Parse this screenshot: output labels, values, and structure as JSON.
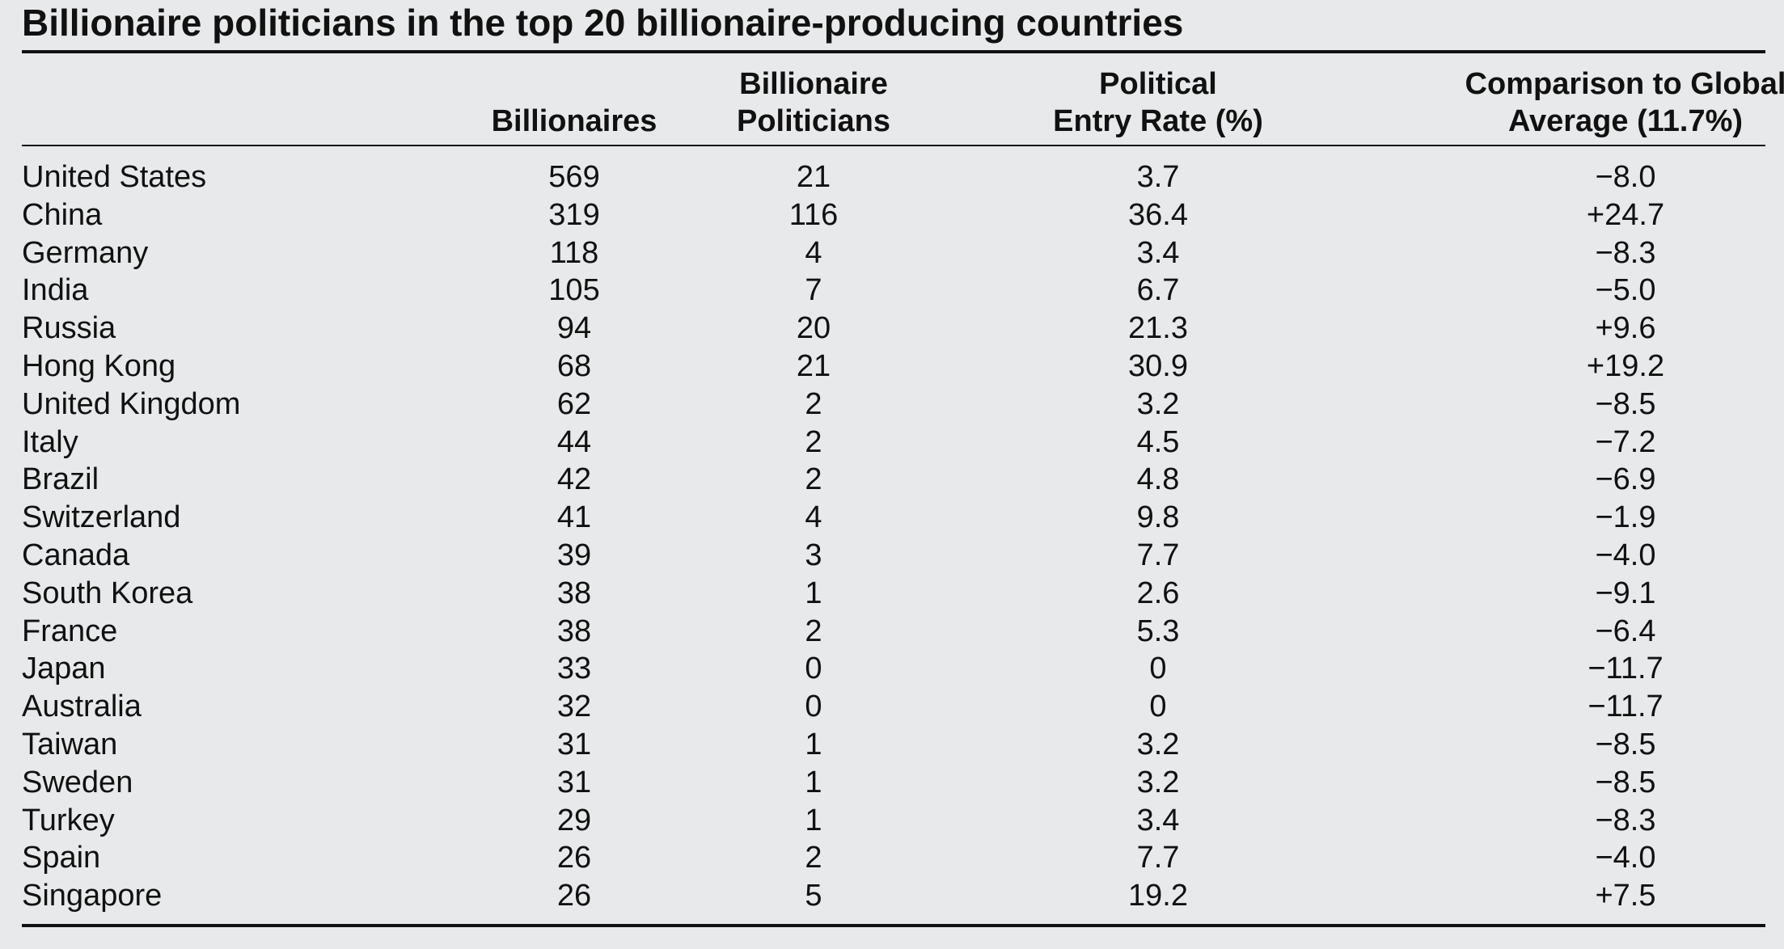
{
  "chart_data": {
    "type": "table",
    "title": "Billionaire politicians in the top 20 billionaire-producing countries",
    "columns": [
      {
        "key": "country",
        "lines": [
          ""
        ]
      },
      {
        "key": "billionaires",
        "lines": [
          "Billionaires"
        ]
      },
      {
        "key": "politicians",
        "lines": [
          "Billionaire",
          "Politicians"
        ]
      },
      {
        "key": "rate",
        "lines": [
          "Political",
          "Entry Rate (%)"
        ]
      },
      {
        "key": "comparison",
        "lines": [
          "Comparison to Global",
          "Average (11.7%)"
        ]
      }
    ],
    "rows": [
      {
        "country": "United States",
        "billionaires": "569",
        "politicians": "21",
        "rate": "3.7",
        "comparison": "−8.0"
      },
      {
        "country": "China",
        "billionaires": "319",
        "politicians": "116",
        "rate": "36.4",
        "comparison": "+24.7"
      },
      {
        "country": "Germany",
        "billionaires": "118",
        "politicians": "4",
        "rate": "3.4",
        "comparison": "−8.3"
      },
      {
        "country": "India",
        "billionaires": "105",
        "politicians": "7",
        "rate": "6.7",
        "comparison": "−5.0"
      },
      {
        "country": "Russia",
        "billionaires": "94",
        "politicians": "20",
        "rate": "21.3",
        "comparison": "+9.6"
      },
      {
        "country": "Hong Kong",
        "billionaires": "68",
        "politicians": "21",
        "rate": "30.9",
        "comparison": "+19.2"
      },
      {
        "country": "United Kingdom",
        "billionaires": "62",
        "politicians": "2",
        "rate": "3.2",
        "comparison": "−8.5"
      },
      {
        "country": "Italy",
        "billionaires": "44",
        "politicians": "2",
        "rate": "4.5",
        "comparison": "−7.2"
      },
      {
        "country": "Brazil",
        "billionaires": "42",
        "politicians": "2",
        "rate": "4.8",
        "comparison": "−6.9"
      },
      {
        "country": "Switzerland",
        "billionaires": "41",
        "politicians": "4",
        "rate": "9.8",
        "comparison": "−1.9"
      },
      {
        "country": "Canada",
        "billionaires": "39",
        "politicians": "3",
        "rate": "7.7",
        "comparison": "−4.0"
      },
      {
        "country": "South Korea",
        "billionaires": "38",
        "politicians": "1",
        "rate": "2.6",
        "comparison": "−9.1"
      },
      {
        "country": "France",
        "billionaires": "38",
        "politicians": "2",
        "rate": "5.3",
        "comparison": "−6.4"
      },
      {
        "country": "Japan",
        "billionaires": "33",
        "politicians": "0",
        "rate": "0",
        "comparison": "−11.7"
      },
      {
        "country": "Australia",
        "billionaires": "32",
        "politicians": "0",
        "rate": "0",
        "comparison": "−11.7"
      },
      {
        "country": "Taiwan",
        "billionaires": "31",
        "politicians": "1",
        "rate": "3.2",
        "comparison": "−8.5"
      },
      {
        "country": "Sweden",
        "billionaires": "31",
        "politicians": "1",
        "rate": "3.2",
        "comparison": "−8.5"
      },
      {
        "country": "Turkey",
        "billionaires": "29",
        "politicians": "1",
        "rate": "3.4",
        "comparison": "−8.3"
      },
      {
        "country": "Spain",
        "billionaires": "26",
        "politicians": "2",
        "rate": "7.7",
        "comparison": "−4.0"
      },
      {
        "country": "Singapore",
        "billionaires": "26",
        "politicians": "5",
        "rate": "19.2",
        "comparison": "+7.5"
      }
    ]
  }
}
